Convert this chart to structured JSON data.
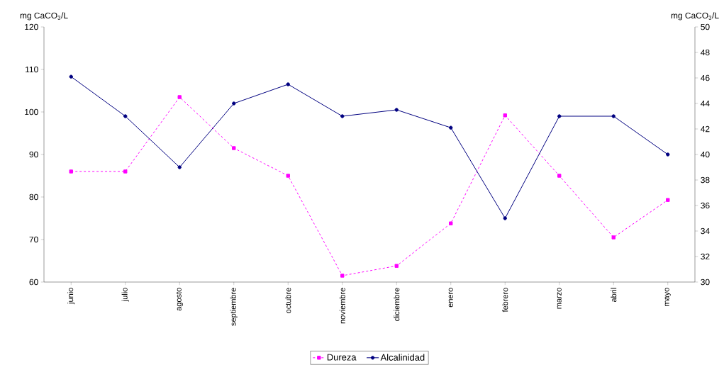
{
  "chart_data": {
    "type": "line",
    "categories": [
      "junio",
      "julio",
      "agosto",
      "septiembre",
      "octubre",
      "noviembre",
      "diciembre",
      "enero",
      "febrero",
      "marzo",
      "abril",
      "mayo"
    ],
    "ylabel": "mg CaCO$_{3}$/L",
    "y2label": "mg CaCO$_{3}$/L",
    "ylim": [
      60,
      120
    ],
    "yticks": [
      60,
      70,
      80,
      90,
      100,
      110,
      120
    ],
    "y2lim": [
      30,
      50
    ],
    "y2ticks": [
      30,
      32,
      34,
      36,
      38,
      40,
      42,
      44,
      46,
      48,
      50
    ],
    "legend": "bottom",
    "grid": false,
    "series": [
      {
        "name": "Dureza",
        "color": "#ff00ff",
        "marker": "square",
        "line_style": "dashed",
        "values": [
          86,
          86,
          103.5,
          91.5,
          85,
          61.5,
          63.8,
          73.8,
          99.2,
          85,
          70.5,
          79.3
        ]
      },
      {
        "name": "Alcalinidad",
        "color": "#000080",
        "marker": "circle",
        "line_style": "solid",
        "axis": "y2",
        "values": [
          46.1,
          43,
          39,
          44,
          45.5,
          43,
          43.5,
          42.1,
          35,
          43,
          43,
          40
        ]
      }
    ]
  }
}
